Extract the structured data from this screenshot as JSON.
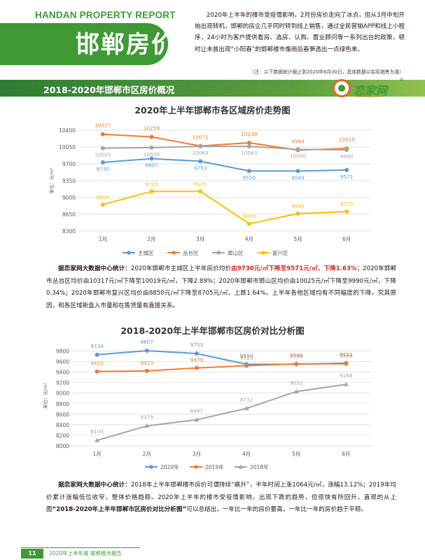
{
  "header": {
    "en_title": "HANDAN PROPERTY REPORT",
    "cn_title": "邯郸房价",
    "intro": "2020年上半年的楼市受疫情影响，2月份房价走向了冰点，但从3月中旬开始出现转机，邯郸的房企几乎同时转到线上销售，通过全民营销APP和线上小程序，24小时为客户提供看房、选房、认购、置业顾问等一系列出台的政策，顿时让未曾出现“小阳春”的邯郸楼市像雨后春笋透出一点绿色来。",
    "note": "（注：以下数据统计截止到2020年6月30日，具体数据以实际销售为准）"
  },
  "section": {
    "title": "2018-2020年邯郸市区房价概况"
  },
  "logo": {
    "name": "恋家网",
    "reg": "®",
    "url": "www.Ljia.com"
  },
  "chart_data": [
    {
      "type": "line",
      "title": "2020年上半年邯郸市各区域房价走势图",
      "ylabel": "单位：元/m²",
      "categories": [
        "1月",
        "2月",
        "3月",
        "4月",
        "5月",
        "6月"
      ],
      "yticks": [
        8300,
        8650,
        9000,
        9350,
        9700,
        10050,
        10400
      ],
      "ylim": [
        8300,
        10400
      ],
      "grid": true,
      "legend_position": "bottom",
      "series": [
        {
          "name": "主城区",
          "color": "#5b9bd5",
          "values": [
            9730,
            9807,
            9753,
            9550,
            9549,
            9571
          ]
        },
        {
          "name": "丛台区",
          "color": "#ed7d31",
          "values": [
            10317,
            10259,
            10071,
            10138,
            9984,
            10019
          ]
        },
        {
          "name": "邯山区",
          "color": "#a5a5a5",
          "values": [
            10025,
            10038,
            10063,
            10063,
            10000,
            9990
          ]
        },
        {
          "name": "复兴区",
          "color": "#ffc000",
          "values": [
            8850,
            9125,
            9125,
            8450,
            8663,
            8705
          ]
        }
      ]
    },
    {
      "type": "line",
      "title": "2018-2020年上半年邯郸市区房价对比分析图",
      "ylabel": "单位：元/m²",
      "categories": [
        "1月",
        "2月",
        "3月",
        "4月",
        "5月",
        "6月"
      ],
      "yticks": [
        8000,
        8200,
        8400,
        8600,
        8800,
        9000,
        9200,
        9400,
        9600,
        9800
      ],
      "ylim": [
        8000,
        9900
      ],
      "grid": true,
      "legend_position": "bottom",
      "series": [
        {
          "name": "2020年",
          "color": "#5b9bd5",
          "marker": "circle",
          "values": [
            9730,
            9807,
            9753,
            9550,
            9549,
            9571
          ]
        },
        {
          "name": "2019年",
          "color": "#ed7d31",
          "marker": "circle",
          "values": [
            9412,
            9423,
            9479,
            9523,
            9556,
            9560
          ]
        },
        {
          "name": "2018年",
          "color": "#a5a5a5",
          "marker": "triangle",
          "values": [
            8104,
            8379,
            8497,
            8712,
            9032,
            9168
          ]
        }
      ]
    }
  ],
  "para1": {
    "src": "据恋家网大数据中心统计：",
    "t1": "2020年邯郸市主城区上半年房价均价",
    "r1": "由9730元/㎡下降至9571元/㎡",
    "t2": "，",
    "r2": "下降1.63%",
    "t3": "；2020年邯郸市丛台区均价由10317元/㎡下降至10019元/㎡，下降2.89%；2020年邯郸市邯山区均价由10025元/㎡下降至9990元/㎡，下降0.34%；2020年邯郸市复兴区均价由8850元/㎡下降至8705元/㎡，上跌1.64%。上半年各他区域均有不同幅度的下降。究其原因，和各区域新盘入市量和在售货量有直接关系。"
  },
  "para2": {
    "src": "据恋家网大数据中心统计：",
    "t1": "2018年上半年邯郸楼市房价可谓持续“飙升”，半年时间上涨1064元/㎡，涨幅13.12%；2019年均价累计涨幅低位收窄，整体价格趋稳。2020年上半年的楼市受疫情影响，出现下跌的趋势，但很快有所回升。直观的从上图",
    "b1": "“2018-2020年上半年邯郸市区房价对比分析图”",
    "t2": "可以总结出，一年比一年的房价要高，一年比一年的房价趋于平稳。"
  },
  "footer": {
    "page": "11",
    "text": "2020年上半年度 邯郸楼市报告"
  }
}
